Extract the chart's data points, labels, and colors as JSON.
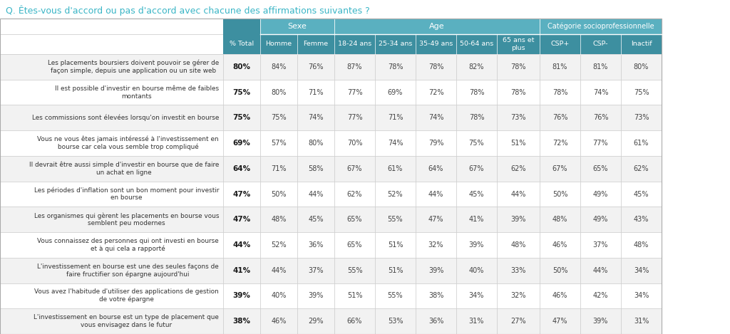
{
  "title": "Q. Êtes-vous d'accord ou pas d'accord avec chacune des affirmations suivantes ?",
  "title_color": "#3ab5c6",
  "col_headers": [
    "% Total",
    "Homme",
    "Femme",
    "18-24 ans",
    "25-34 ans",
    "35-49 ans",
    "50-64 ans",
    "65 ans et\nplus",
    "CSP+",
    "CSP-",
    "Inactif"
  ],
  "rows": [
    {
      "label": "Les placements boursiers doivent pouvoir se gérer de\nfaçon simple, depuis une application ou un site web",
      "values": [
        "80%",
        "84%",
        "76%",
        "87%",
        "78%",
        "78%",
        "82%",
        "78%",
        "81%",
        "81%",
        "80%"
      ],
      "shaded": true
    },
    {
      "label": "Il est possible d'investir en bourse même de faibles\nmontants",
      "values": [
        "75%",
        "80%",
        "71%",
        "77%",
        "69%",
        "72%",
        "78%",
        "78%",
        "78%",
        "74%",
        "75%"
      ],
      "shaded": false
    },
    {
      "label": "Les commissions sont élevées lorsqu'on investit en bourse",
      "values": [
        "75%",
        "75%",
        "74%",
        "77%",
        "71%",
        "74%",
        "78%",
        "73%",
        "76%",
        "76%",
        "73%"
      ],
      "shaded": true
    },
    {
      "label": "Vous ne vous êtes jamais intéressé à l'investissement en\nbourse car cela vous semble trop compliqué",
      "values": [
        "69%",
        "57%",
        "80%",
        "70%",
        "74%",
        "79%",
        "75%",
        "51%",
        "72%",
        "77%",
        "61%"
      ],
      "shaded": false
    },
    {
      "label": "Il devrait être aussi simple d'investir en bourse que de faire\nun achat en ligne",
      "values": [
        "64%",
        "71%",
        "58%",
        "67%",
        "61%",
        "64%",
        "67%",
        "62%",
        "67%",
        "65%",
        "62%"
      ],
      "shaded": true
    },
    {
      "label": "Les périodes d'inflation sont un bon moment pour investir\nen bourse",
      "values": [
        "47%",
        "50%",
        "44%",
        "62%",
        "52%",
        "44%",
        "45%",
        "44%",
        "50%",
        "49%",
        "45%"
      ],
      "shaded": false
    },
    {
      "label": "Les organismes qui gèrent les placements en bourse vous\nsemblent peu modernes",
      "values": [
        "47%",
        "48%",
        "45%",
        "65%",
        "55%",
        "47%",
        "41%",
        "39%",
        "48%",
        "49%",
        "43%"
      ],
      "shaded": true
    },
    {
      "label": "Vous connaissez des personnes qui ont investi en bourse\net à qui cela a rapporté",
      "values": [
        "44%",
        "52%",
        "36%",
        "65%",
        "51%",
        "32%",
        "39%",
        "48%",
        "46%",
        "37%",
        "48%"
      ],
      "shaded": false
    },
    {
      "label": "L'investissement en bourse est une des seules façons de\nfaire fructifier son épargne aujourd'hui",
      "values": [
        "41%",
        "44%",
        "37%",
        "55%",
        "51%",
        "39%",
        "40%",
        "33%",
        "50%",
        "44%",
        "34%"
      ],
      "shaded": true
    },
    {
      "label": "Vous avez l'habitude d'utiliser des applications de gestion\nde votre épargne",
      "values": [
        "39%",
        "40%",
        "39%",
        "51%",
        "55%",
        "38%",
        "34%",
        "32%",
        "46%",
        "42%",
        "34%"
      ],
      "shaded": false
    },
    {
      "label": "L'investissement en bourse est un type de placement que\nvous envisagez dans le futur",
      "values": [
        "38%",
        "46%",
        "29%",
        "66%",
        "53%",
        "36%",
        "31%",
        "27%",
        "47%",
        "39%",
        "31%"
      ],
      "shaded": true
    }
  ],
  "header_dark": "#3d8fa0",
  "header_light": "#5ab0c0",
  "shaded_row": "#f2f2f2",
  "white_row": "#ffffff",
  "border_color": "#c8c8c8",
  "text_dark": "#333333",
  "text_light": "#555555"
}
